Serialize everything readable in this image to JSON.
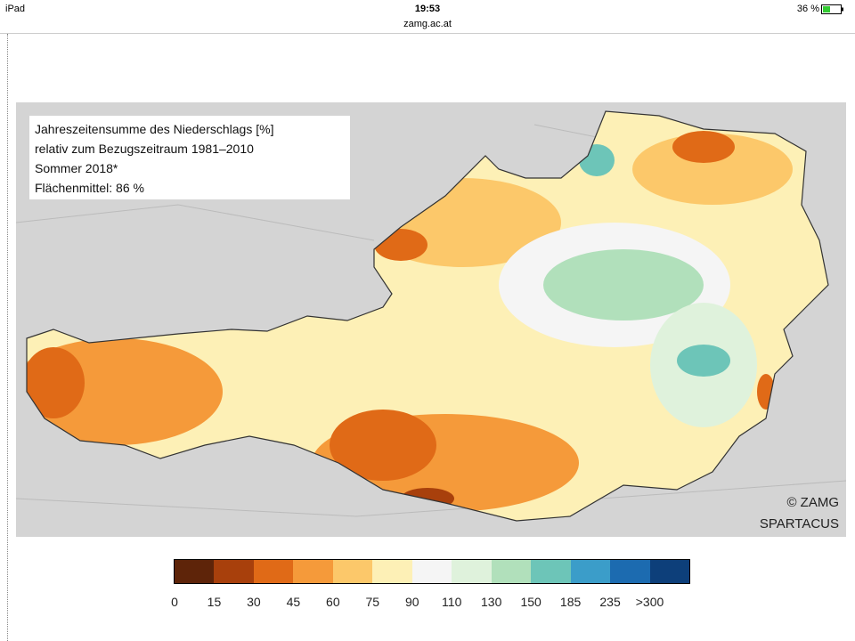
{
  "status_bar": {
    "device": "iPad",
    "time": "19:53",
    "url": "zamg.ac.at",
    "battery": "36 %"
  },
  "map": {
    "info_lines": [
      "Jahreszeitensumme des Niederschlags [%]",
      "relativ zum Bezugszeitraum 1981–2010",
      "Sommer 2018*",
      "Flächenmittel: 86 %"
    ],
    "credit": [
      "© ZAMG",
      "SPARTACUS"
    ]
  },
  "legend": {
    "colors": [
      "#5e2409",
      "#a8400c",
      "#e06a17",
      "#f59a3a",
      "#fcc86a",
      "#fdf0b6",
      "#f5f5f5",
      "#dff2dc",
      "#b1e0bb",
      "#6dc5b8",
      "#3b9dc9",
      "#1c6bb0",
      "#0d3f7a"
    ],
    "labels": [
      "0",
      "15",
      "30",
      "45",
      "60",
      "75",
      "90",
      "110",
      "130",
      "150",
      "185",
      "235",
      ">300"
    ]
  }
}
